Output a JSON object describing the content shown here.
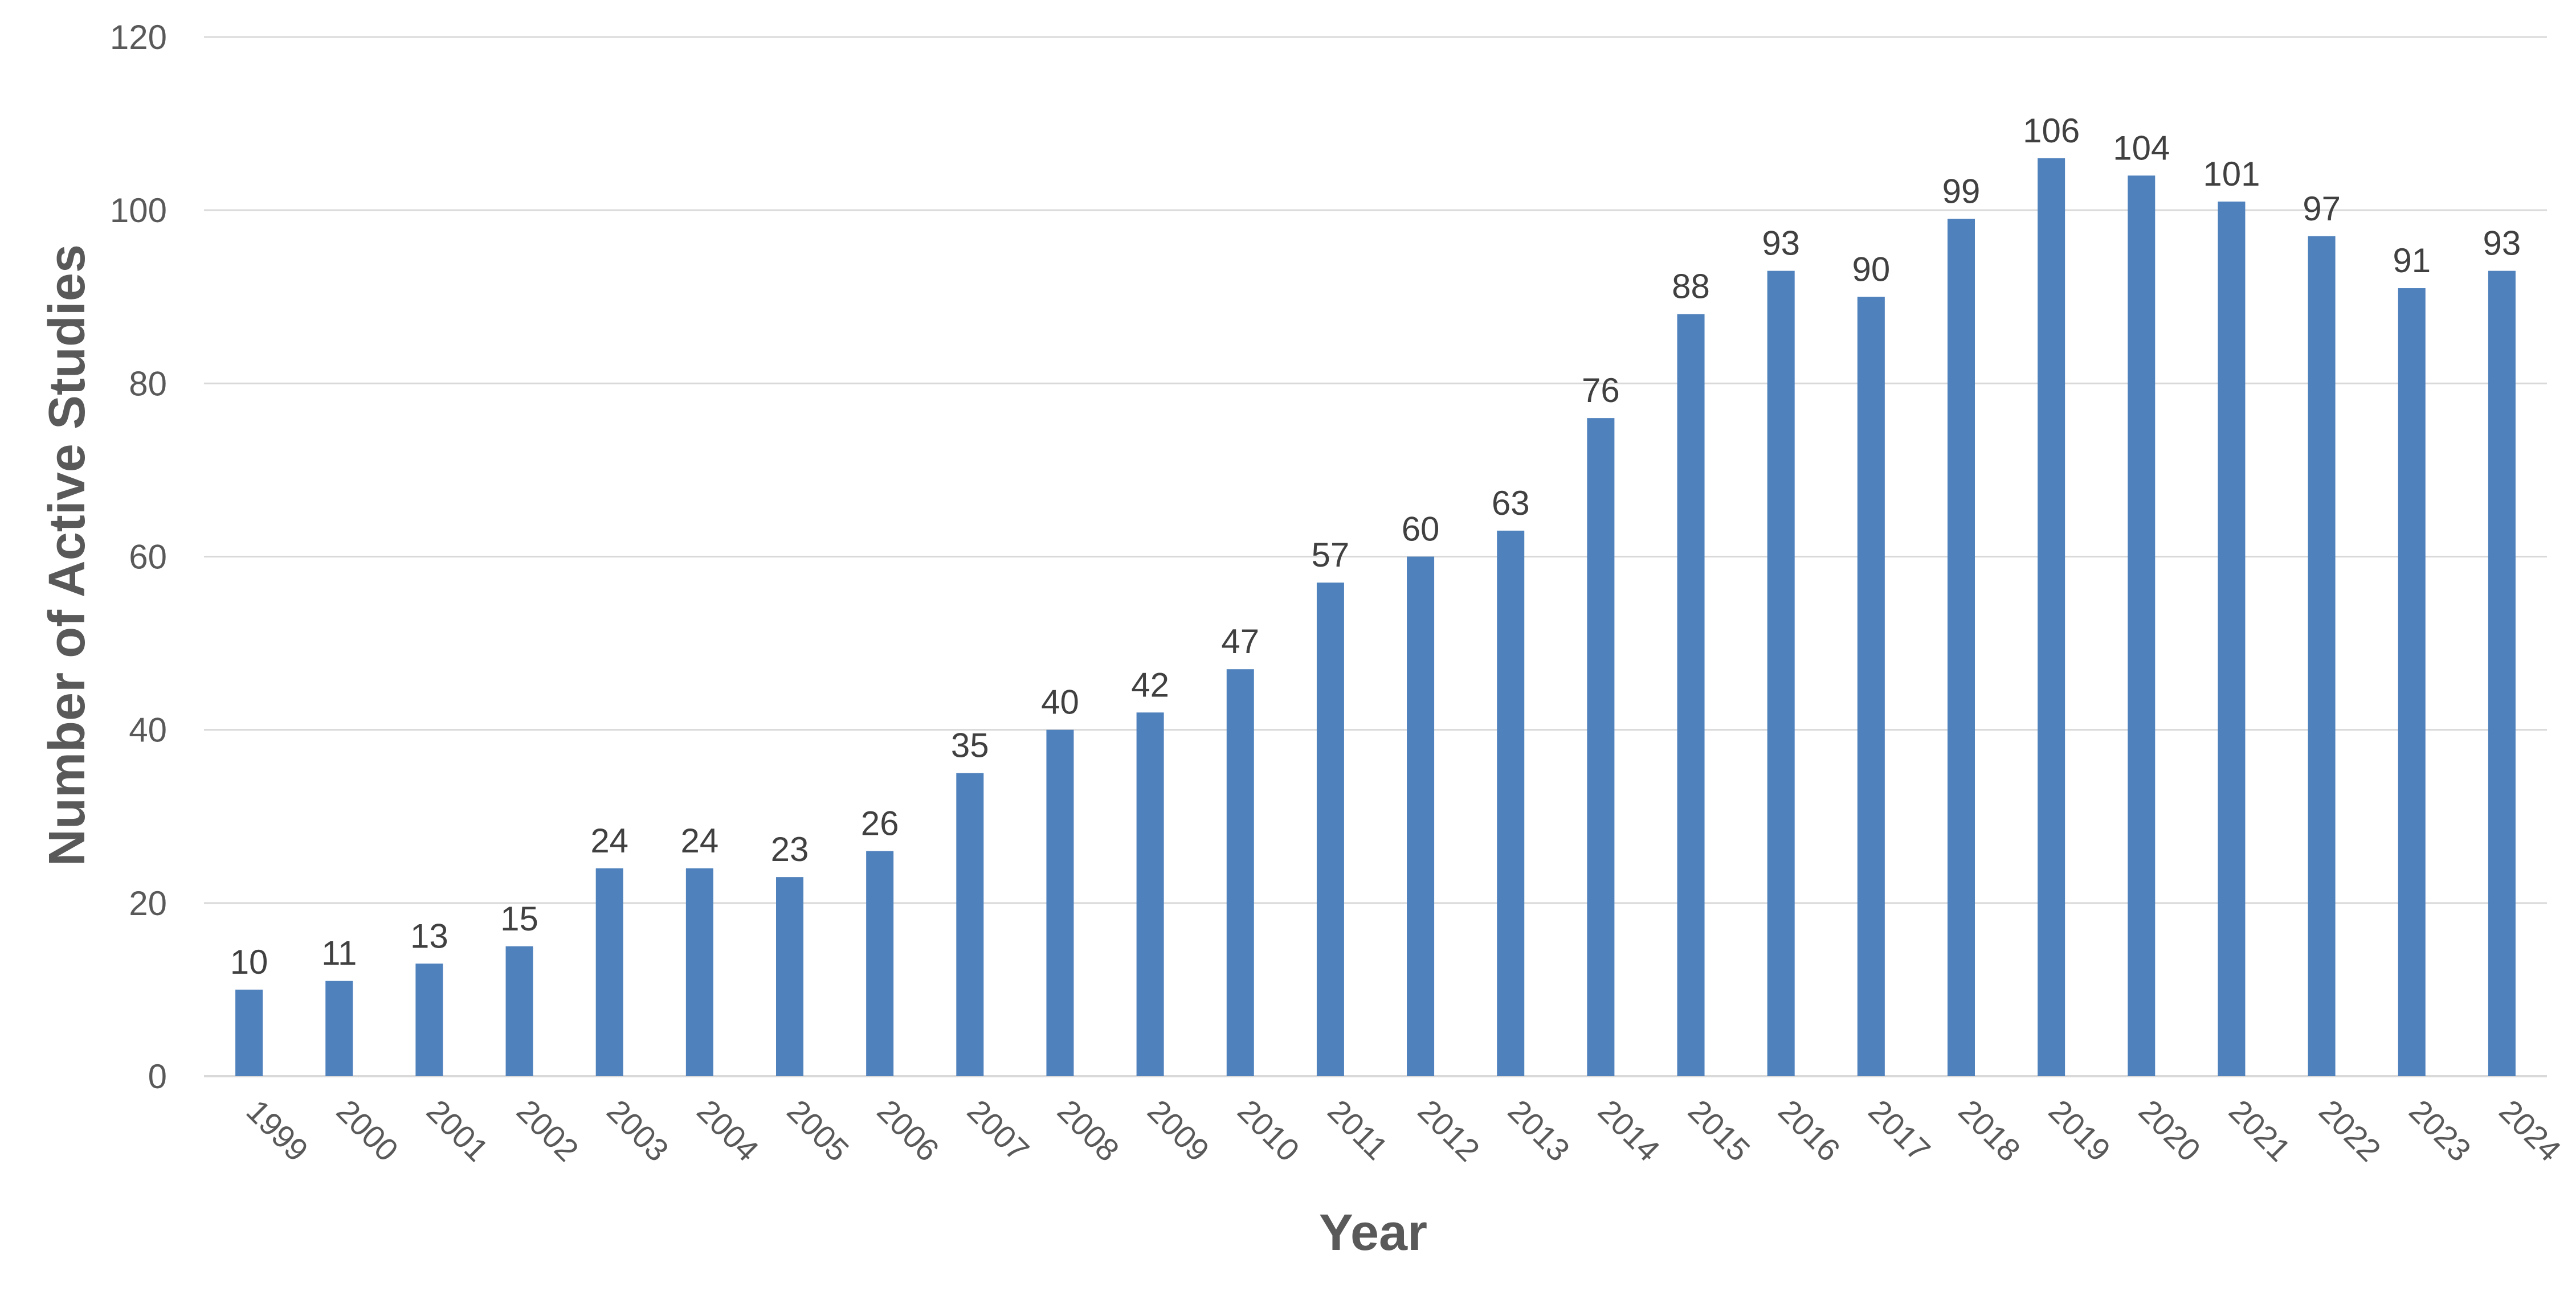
{
  "chart_data": {
    "type": "bar",
    "xlabel": "Year",
    "ylabel": "Number of Active Studies",
    "ylim": [
      0,
      120
    ],
    "yticks": [
      0,
      20,
      40,
      60,
      80,
      100,
      120
    ],
    "grid": true,
    "legend": "none",
    "bar_color": "#4f81bd",
    "categories": [
      "1999",
      "2000",
      "2001",
      "2002",
      "2003",
      "2004",
      "2005",
      "2006",
      "2007",
      "2008",
      "2009",
      "2010",
      "2011",
      "2012",
      "2013",
      "2014",
      "2015",
      "2016",
      "2017",
      "2018",
      "2019",
      "2020",
      "2021",
      "2022",
      "2023",
      "2024"
    ],
    "values": [
      10,
      11,
      13,
      15,
      24,
      24,
      23,
      26,
      35,
      40,
      42,
      47,
      57,
      60,
      63,
      76,
      88,
      93,
      90,
      99,
      106,
      104,
      101,
      97,
      91,
      93
    ],
    "data_labels": true
  }
}
